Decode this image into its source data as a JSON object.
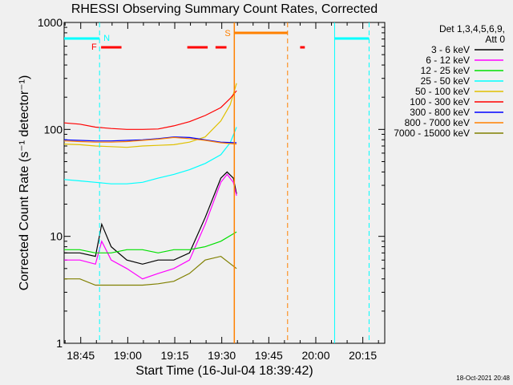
{
  "chart_data": {
    "type": "line",
    "title": "RHESSI Observing Summary Count Rates, Corrected",
    "xlabel": "Start Time (16-Jul-04 18:39:42)",
    "ylabel": "Corrected Count Rate (s⁻¹ detector⁻¹)",
    "yscale": "log",
    "ylim": [
      1,
      1000
    ],
    "xlim": [
      "18:39:42",
      "20:22:00"
    ],
    "x_ticks": [
      "18:45",
      "19:00",
      "19:15",
      "19:30",
      "19:45",
      "20:00",
      "20:15"
    ],
    "y_ticks": [
      "1",
      "10",
      "100",
      "1000"
    ],
    "legend_header": [
      "Det 1,3,4,5,6,9,",
      "Att 0"
    ],
    "legend_position": "right",
    "series": [
      {
        "name": "3 - 6 keV",
        "color": "#000000",
        "points": [
          [
            0,
            7
          ],
          [
            5,
            7
          ],
          [
            10,
            6.5
          ],
          [
            12,
            13
          ],
          [
            15,
            8
          ],
          [
            20,
            6
          ],
          [
            25,
            5.5
          ],
          [
            30,
            6
          ],
          [
            35,
            6
          ],
          [
            40,
            7
          ],
          [
            45,
            15
          ],
          [
            50,
            35
          ],
          [
            52,
            40
          ],
          [
            54,
            35
          ],
          [
            55,
            25
          ]
        ]
      },
      {
        "name": "6 - 12 keV",
        "color": "#ff00ff",
        "points": [
          [
            0,
            6
          ],
          [
            5,
            6
          ],
          [
            10,
            5.5
          ],
          [
            12,
            9
          ],
          [
            15,
            6
          ],
          [
            20,
            5
          ],
          [
            25,
            4
          ],
          [
            30,
            4.5
          ],
          [
            35,
            5
          ],
          [
            40,
            6
          ],
          [
            45,
            13
          ],
          [
            50,
            32
          ],
          [
            52,
            38
          ],
          [
            54,
            32
          ],
          [
            55,
            24
          ]
        ]
      },
      {
        "name": "12 - 25 keV",
        "color": "#00e000",
        "points": [
          [
            0,
            7.5
          ],
          [
            5,
            7.5
          ],
          [
            10,
            7
          ],
          [
            15,
            7
          ],
          [
            20,
            7.5
          ],
          [
            25,
            7.5
          ],
          [
            30,
            7
          ],
          [
            35,
            7.5
          ],
          [
            40,
            7.5
          ],
          [
            45,
            8
          ],
          [
            50,
            9
          ],
          [
            55,
            11
          ]
        ]
      },
      {
        "name": "25 - 50 keV",
        "color": "#00ffff",
        "points": [
          [
            0,
            34
          ],
          [
            5,
            33
          ],
          [
            10,
            32
          ],
          [
            15,
            31
          ],
          [
            20,
            31
          ],
          [
            25,
            32
          ],
          [
            30,
            35
          ],
          [
            35,
            38
          ],
          [
            40,
            42
          ],
          [
            45,
            48
          ],
          [
            50,
            58
          ],
          [
            53,
            75
          ],
          [
            55,
            105
          ]
        ]
      },
      {
        "name": "50 - 100 keV",
        "color": "#e0c000",
        "points": [
          [
            0,
            73
          ],
          [
            5,
            72
          ],
          [
            10,
            70
          ],
          [
            15,
            69
          ],
          [
            20,
            68
          ],
          [
            25,
            70
          ],
          [
            30,
            71
          ],
          [
            35,
            72
          ],
          [
            40,
            76
          ],
          [
            45,
            85
          ],
          [
            50,
            120
          ],
          [
            53,
            170
          ],
          [
            55,
            270
          ]
        ]
      },
      {
        "name": "100 - 300 keV",
        "color": "#ff0000",
        "points": [
          [
            0,
            115
          ],
          [
            5,
            112
          ],
          [
            10,
            105
          ],
          [
            15,
            102
          ],
          [
            20,
            100
          ],
          [
            25,
            100
          ],
          [
            30,
            101
          ],
          [
            35,
            108
          ],
          [
            40,
            118
          ],
          [
            45,
            135
          ],
          [
            50,
            160
          ],
          [
            53,
            195
          ],
          [
            55,
            230
          ]
        ]
      },
      {
        "name": "300 - 800 keV",
        "color": "#0000ff",
        "points": [
          [
            0,
            80
          ],
          [
            5,
            79
          ],
          [
            10,
            78
          ],
          [
            15,
            78
          ],
          [
            20,
            79
          ],
          [
            25,
            80
          ],
          [
            30,
            82
          ],
          [
            35,
            85
          ],
          [
            40,
            84
          ],
          [
            45,
            80
          ],
          [
            50,
            76
          ],
          [
            55,
            75
          ]
        ]
      },
      {
        "name": "800 - 7000 keV",
        "color": "#ff8000",
        "points": [
          [
            0,
            78
          ],
          [
            5,
            77
          ],
          [
            10,
            76
          ],
          [
            15,
            76
          ],
          [
            20,
            77
          ],
          [
            25,
            79
          ],
          [
            30,
            81
          ],
          [
            35,
            84
          ],
          [
            40,
            82
          ],
          [
            45,
            79
          ],
          [
            50,
            75
          ],
          [
            55,
            73
          ]
        ]
      },
      {
        "name": "7000 - 15000 keV",
        "color": "#808000",
        "points": [
          [
            0,
            4
          ],
          [
            5,
            4
          ],
          [
            10,
            3.5
          ],
          [
            15,
            3.5
          ],
          [
            20,
            3.5
          ],
          [
            25,
            3.5
          ],
          [
            30,
            3.6
          ],
          [
            35,
            3.8
          ],
          [
            40,
            4.5
          ],
          [
            45,
            6
          ],
          [
            50,
            6.5
          ],
          [
            55,
            5
          ]
        ]
      }
    ],
    "grid": false,
    "footer_date": "18-Oct-2021 20:48",
    "flag_labels": [
      "N",
      "F",
      "S"
    ]
  }
}
